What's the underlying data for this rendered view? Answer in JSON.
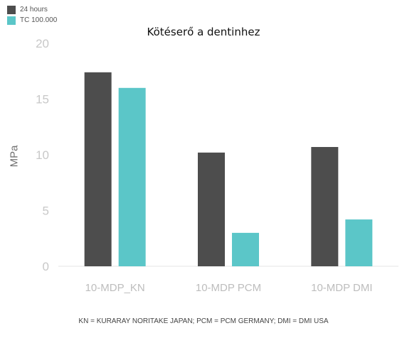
{
  "chart_data": {
    "type": "bar",
    "title": "Kötéserő a dentinhez",
    "ylabel": "MPa",
    "xlabel": "",
    "categories": [
      "10-MDP_KN",
      "10-MDP PCM",
      "10-MDP DMI"
    ],
    "series": [
      {
        "name": "24 hours",
        "color": "#4d4d4d",
        "values": [
          17.4,
          10.2,
          10.7
        ]
      },
      {
        "name": "TC 100.000",
        "color": "#5bc6c8",
        "values": [
          16.0,
          3.0,
          4.2
        ]
      }
    ],
    "ylim": [
      0,
      20
    ],
    "yticks": [
      "0",
      "5",
      "10",
      "15",
      "20"
    ],
    "grid": false,
    "legend": "top-left",
    "footnote": "KN = KURARAY NORITAKE JAPAN; PCM = PCM GERMANY; DMI = DMI USA"
  }
}
